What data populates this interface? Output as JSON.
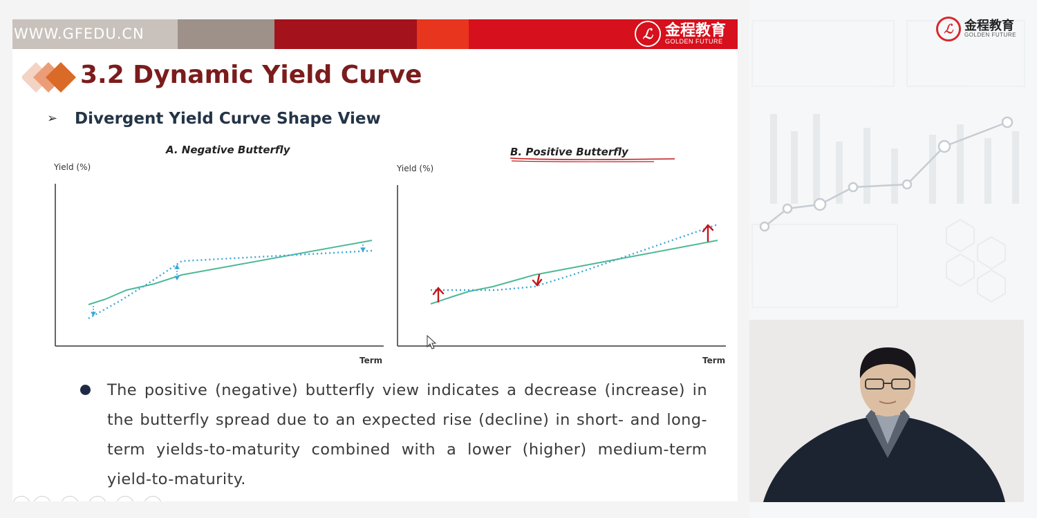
{
  "slide": {
    "url": "WWW.GFEDU.CN",
    "logo_cn": "金程教育",
    "logo_en": "GOLDEN FUTURE",
    "title": "3.2 Dynamic Yield Curve",
    "subtitle_marker": "➢",
    "subtitle": "Divergent Yield Curve Shape View",
    "bullet": "The positive (negative) butterfly view indicates a decrease (increase) in the butterfly spread due to an expected rise (decline) in short- and long-term yields-to-maturity combined with a lower (higher) medium-term yield-to-maturity."
  },
  "figures": {
    "a": {
      "title": "A. Negative Butterfly",
      "ylabel": "Yield (%)",
      "xlabel": "Term"
    },
    "b": {
      "title": "B. Positive Butterfly",
      "ylabel": "Yield (%)",
      "xlabel": "Term"
    }
  },
  "right_panel": {
    "logo_cn": "金程教育",
    "logo_en": "GOLDEN FUTURE"
  },
  "colors": {
    "banner_red": "#d6101c",
    "title": "#7b1c1c",
    "curve_solid": "#4db894",
    "curve_dotted": "#3aa5d8",
    "annotation": "#c2161c"
  },
  "icons": [
    "logo-seal-icon",
    "diamond-bullet-icon",
    "arrow-bullet-icon",
    "mouse-cursor-icon",
    "player-toolbar-icons"
  ]
}
